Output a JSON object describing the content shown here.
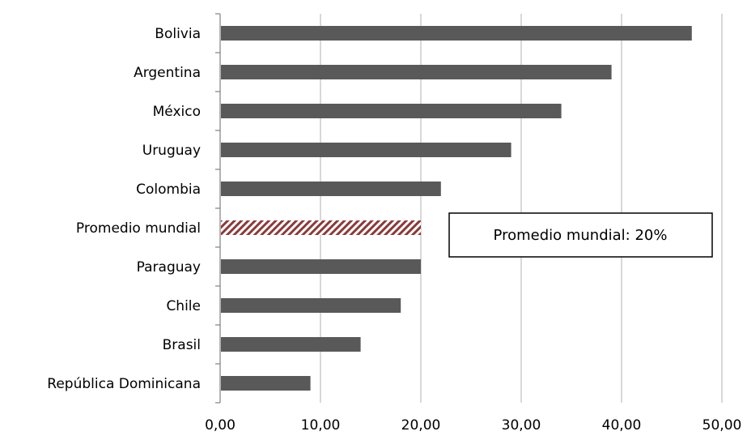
{
  "chart_data": {
    "type": "bar",
    "orientation": "horizontal",
    "title": "",
    "xlabel": "",
    "ylabel": "",
    "categories": [
      "Bolivia",
      "Argentina",
      "México",
      "Uruguay ",
      "Colombia",
      "Promedio mundial",
      "Paraguay ",
      "Chile",
      "Brasil",
      "República Dominicana"
    ],
    "values": [
      47,
      39,
      34,
      29,
      22,
      20,
      20,
      18,
      14,
      9
    ],
    "highlight_category": "Promedio mundial",
    "xlim": [
      0,
      50
    ],
    "x_ticks": [
      0,
      10,
      20,
      30,
      40,
      50
    ],
    "x_tick_labels": [
      "0,00",
      "10,00",
      "20,00",
      "30,00",
      "40,00",
      "50,00"
    ],
    "grid": "vertical gridlines",
    "legend": "none",
    "annotation": {
      "text": "Promedio mundial: 20%"
    },
    "colors": {
      "bar": "#595959",
      "highlight": "#8b3a3a",
      "grid": "#bfbfbf",
      "axis": "#808080"
    }
  }
}
